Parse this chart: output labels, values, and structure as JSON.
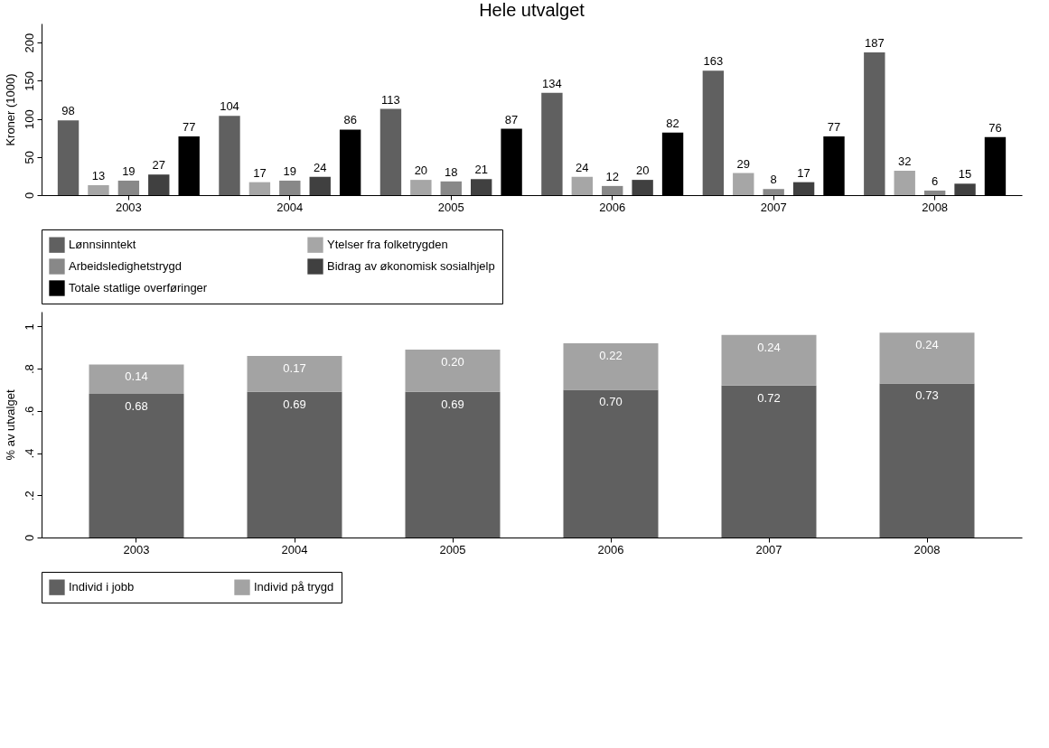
{
  "chart_data": [
    {
      "type": "bar",
      "title": "Hele utvalget",
      "ylabel": "Kroner (1000)",
      "categories": [
        "2003",
        "2004",
        "2005",
        "2006",
        "2007",
        "2008"
      ],
      "series": [
        {
          "name": "Lønnsinntekt",
          "color": "#606060",
          "values": [
            98,
            104,
            113,
            134,
            163,
            187
          ]
        },
        {
          "name": "Ytelser fra folketrygden",
          "color": "#a6a6a6",
          "values": [
            13,
            17,
            20,
            24,
            29,
            32
          ]
        },
        {
          "name": "Arbeidsledighetstrygd",
          "color": "#888888",
          "values": [
            19,
            19,
            18,
            12,
            8,
            6
          ]
        },
        {
          "name": "Bidrag av økonomisk sosialhjelp",
          "color": "#404040",
          "values": [
            27,
            24,
            21,
            20,
            17,
            15
          ]
        },
        {
          "name": "Totale statlige overføringer",
          "color": "#000000",
          "values": [
            77,
            86,
            87,
            82,
            77,
            76
          ]
        }
      ],
      "ylim": [
        0,
        225
      ],
      "yticks": [
        0,
        50,
        100,
        150,
        200
      ],
      "data_labels": true,
      "legend": "bottom",
      "grid": false
    },
    {
      "type": "bar",
      "stacked": true,
      "ylabel": "% av utvalget",
      "categories": [
        "2003",
        "2004",
        "2005",
        "2006",
        "2007",
        "2008"
      ],
      "series": [
        {
          "name": "Individ i jobb",
          "color": "#606060",
          "values": [
            0.68,
            0.69,
            0.69,
            0.7,
            0.72,
            0.73
          ],
          "value_labels": [
            "0.68",
            "0.69",
            "0.69",
            "0.70",
            "0.72",
            "0.73"
          ]
        },
        {
          "name": "Individ på trygd",
          "color": "#a3a3a3",
          "values": [
            0.14,
            0.17,
            0.2,
            0.22,
            0.24,
            0.24
          ],
          "value_labels": [
            "0.14",
            "0.17",
            "0.20",
            "0.22",
            "0.24",
            "0.24"
          ]
        }
      ],
      "ylim": [
        0,
        1.07
      ],
      "yticks": [
        0,
        {
          "value": 0.2,
          "label": ".2"
        },
        {
          "value": 0.4,
          "label": ".4"
        },
        {
          "value": 0.6,
          "label": ".6"
        },
        {
          "value": 0.8,
          "label": ".8"
        },
        1
      ],
      "legend": "bottom",
      "grid": false
    }
  ]
}
